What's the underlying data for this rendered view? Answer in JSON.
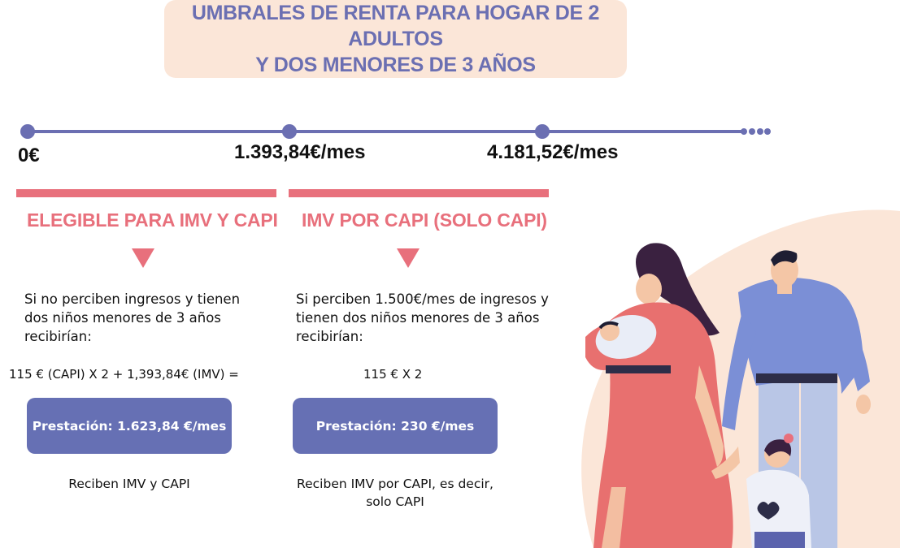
{
  "title": {
    "line1": "UMBRALES DE RENTA PARA HOGAR DE 2 ADULTOS",
    "line2": "Y DOS MENORES DE 3 AÑOS"
  },
  "colors": {
    "accent_purple": "#6b6fb2",
    "accent_pink": "#e8707c",
    "title_bg": "#fbe6d8",
    "button": "#6670b4"
  },
  "timeline": {
    "thresholds": [
      "0€",
      "1.393,84€/mes",
      "4.181,52€/mes"
    ]
  },
  "columns": [
    {
      "heading": "ELEGIBLE PARA IMV Y CAPI",
      "description": [
        "Si no perciben ingresos y tienen",
        "dos niños menores de 3 años",
        "recibirían:"
      ],
      "formula": "115 € (CAPI) X 2 + 1,393,84€ (IMV) =",
      "benefit": "Prestación: 1.623,84 €/mes",
      "note": [
        "Reciben IMV y CAPI"
      ]
    },
    {
      "heading": "IMV POR CAPI (SOLO CAPI)",
      "description": [
        "Si perciben 1.500€/mes de ingresos y",
        "tienen dos niños menores de 3 años",
        "recibirían:"
      ],
      "formula": "115 € X 2",
      "benefit": "Prestación: 230 €/mes",
      "note": [
        "Reciben IMV por CAPI, es decir,",
        "solo CAPI"
      ]
    }
  ],
  "illustration": "family-illustration"
}
